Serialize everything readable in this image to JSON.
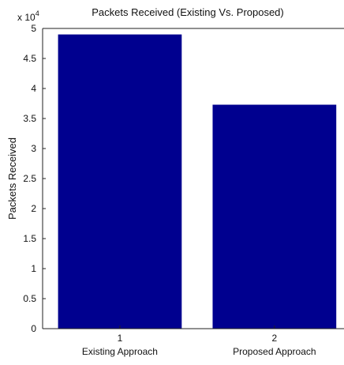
{
  "chart_data": {
    "type": "bar",
    "title": "Packets Received (Existing Vs. Proposed)",
    "ylabel": "Packets Received",
    "xlabel": "",
    "exponent_label": "x 10",
    "exponent_power": "4",
    "categories": [
      "1",
      "2"
    ],
    "category_names": [
      "Existing Approach",
      "Proposed Approach"
    ],
    "values": [
      49000,
      37300
    ],
    "ylim": [
      0,
      50000
    ],
    "yticks": [
      0,
      5000,
      10000,
      15000,
      20000,
      25000,
      30000,
      35000,
      40000,
      45000,
      50000
    ],
    "ytick_labels": [
      "0",
      "0.5",
      "1",
      "1.5",
      "2",
      "2.5",
      "3",
      "3.5",
      "4",
      "4.5",
      "5"
    ],
    "bar_color": "#00008f",
    "grid": false
  }
}
